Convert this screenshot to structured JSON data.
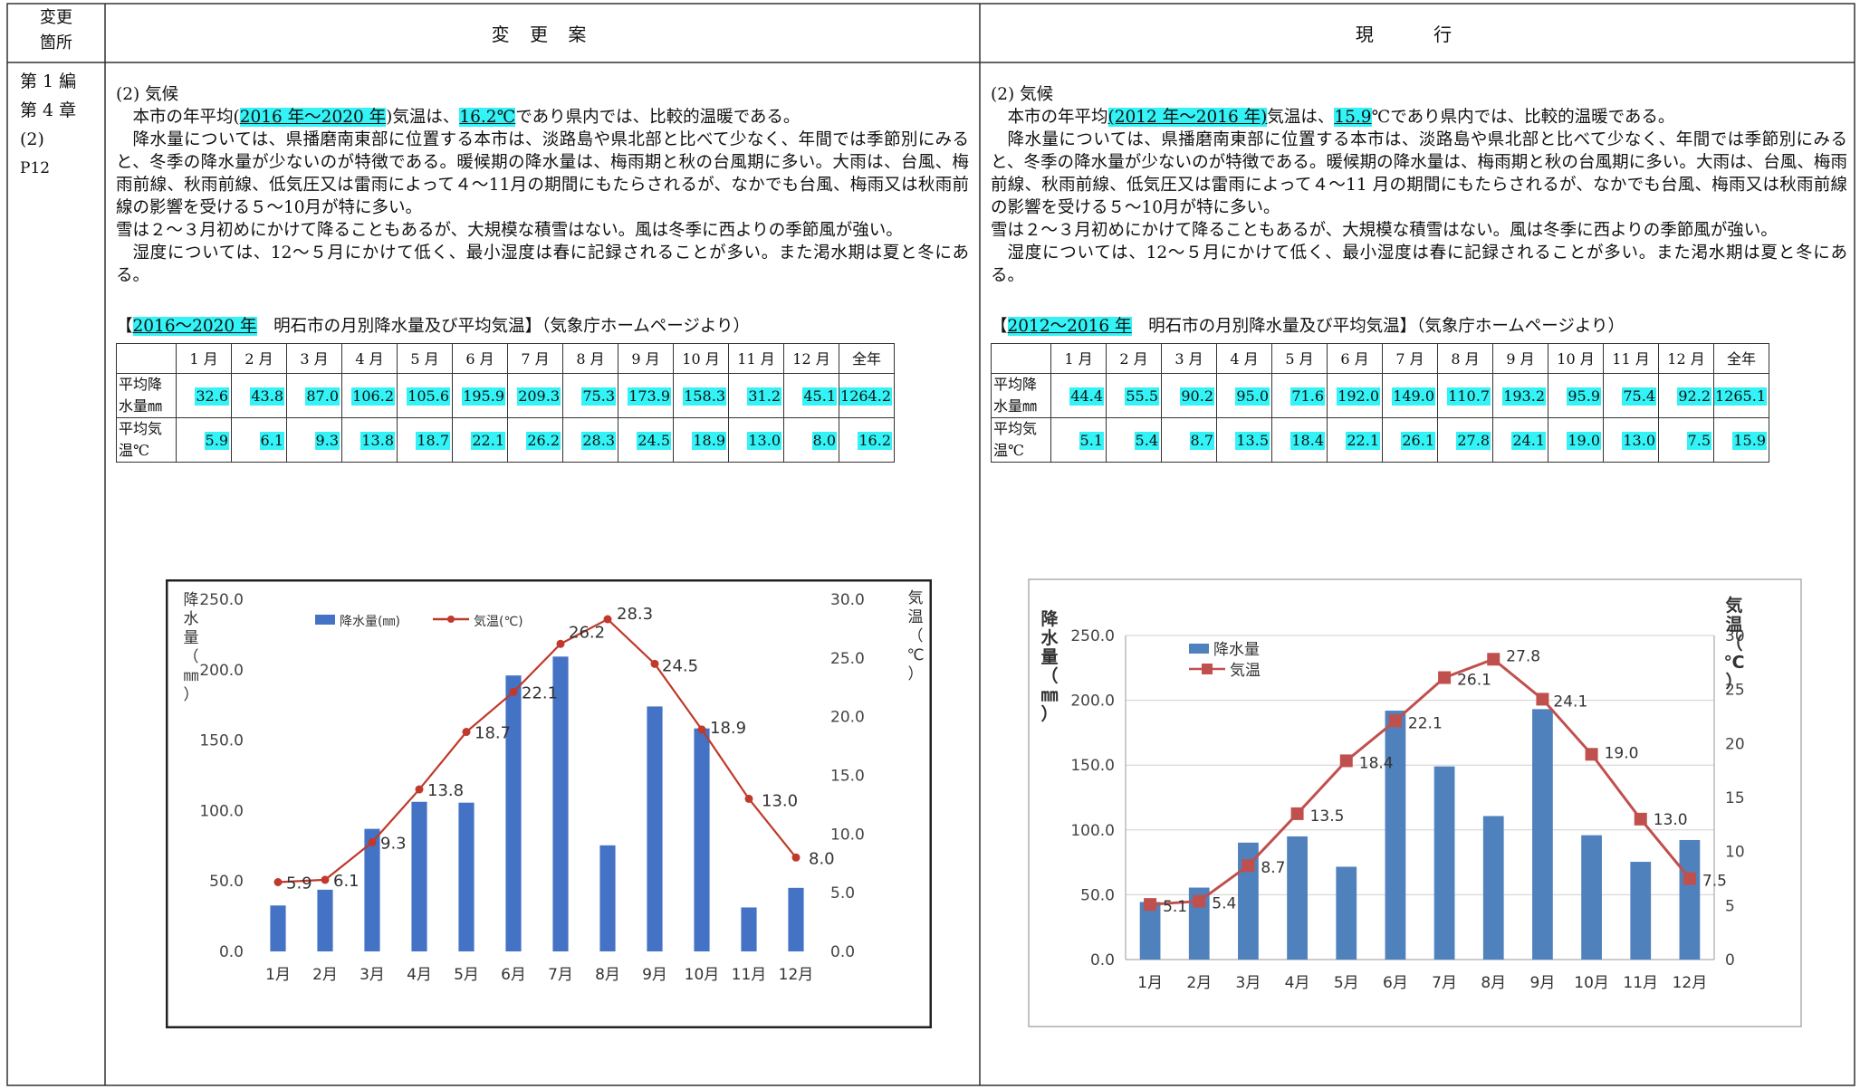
{
  "header": {
    "col_location": [
      "変更",
      "箇所"
    ],
    "col_proposed": "変 更 案",
    "col_current": "現 行"
  },
  "location": [
    "第 1 編",
    "第 4 章",
    "(2)",
    "P12"
  ],
  "proposed": {
    "heading": "(2) 気候",
    "p1_pre": "本市の年平均(",
    "p1_hl1": "2016 年～2020 年",
    "p1_mid": ")気温は、",
    "p1_hl2": "16.2℃",
    "p1_post": "であり県内では、比較的温暖である。",
    "p2": "降水量については、県播磨南東部に位置する本市は、淡路島や県北部と比べて少なく、年間では季節別にみると、冬季の降水量が少ないのが特徴である。暖候期の降水量は、梅雨期と秋の台風期に多い。大雨は、台風、梅雨前線、秋雨前線、低気圧又は雷雨によって４～11月の期間にもたらされるが、なかでも台風、梅雨又は秋雨前線の影響を受ける５～10月が特に多い。",
    "p3": "雪は２～３月初めにかけて降ることもあるが、大規模な積雪はない。風は冬季に西よりの季節風が強い。",
    "p4": "湿度については、12～５月にかけて低く、最小湿度は春に記録されることが多い。また渇水期は夏と冬にある。",
    "caption_open": "【",
    "caption_hl": "2016～2020 年",
    "caption_rest": "　明石市の月別降水量及び平均気温】（気象庁ホームページより）",
    "table": {
      "months": [
        "1 月",
        "2 月",
        "3 月",
        "4 月",
        "5 月",
        "6 月",
        "7 月",
        "8 月",
        "9 月",
        "10 月",
        "11 月",
        "12 月",
        "全年"
      ],
      "row1_label": "平均降水量㎜",
      "row1": [
        "32.6",
        "43.8",
        "87.0",
        "106.2",
        "105.6",
        "195.9",
        "209.3",
        "75.3",
        "173.9",
        "158.3",
        "31.2",
        "45.1",
        "1264.2"
      ],
      "row2_label": "平均気温℃",
      "row2": [
        "5.9",
        "6.1",
        "9.3",
        "13.8",
        "18.7",
        "22.1",
        "26.2",
        "28.3",
        "24.5",
        "18.9",
        "13.0",
        "8.0",
        "16.2"
      ]
    }
  },
  "current": {
    "heading": "(2) 気候",
    "p1_pre": "本市の年平均",
    "p1_hl1": "(2012 年～2016 年)",
    "p1_mid": "気温は、",
    "p1_hl2": "15.9",
    "p1_post": "℃であり県内では、比較的温暖である。",
    "p2": "降水量については、県播磨南東部に位置する本市は、淡路島や県北部と比べて少なく、年間では季節別にみると、冬季の降水量が少ないのが特徴である。暖候期の降水量は、梅雨期と秋の台風期に多い。大雨は、台風、梅雨前線、秋雨前線、低気圧又は雷雨によって４～11 月の期間にもたらされるが、なかでも台風、梅雨又は秋雨前線の影響を受ける５～10月が特に多い。",
    "p3": "雪は２～３月初めにかけて降ることもあるが、大規模な積雪はない。風は冬季に西よりの季節風が強い。",
    "p4": "湿度については、12～５月にかけて低く、最小湿度は春に記録されることが多い。また渇水期は夏と冬にある。",
    "caption_open": "【",
    "caption_hl": "2012～2016 年",
    "caption_rest": "　明石市の月別降水量及び平均気温】（気象庁ホームページより）",
    "table": {
      "months": [
        "1 月",
        "2 月",
        "3 月",
        "4 月",
        "5 月",
        "6 月",
        "7 月",
        "8 月",
        "9 月",
        "10 月",
        "11 月",
        "12 月",
        "全年"
      ],
      "row1_label": "平均降水量㎜",
      "row1": [
        "44.4",
        "55.5",
        "90.2",
        "95.0",
        "71.6",
        "192.0",
        "149.0",
        "110.7",
        "193.2",
        "95.9",
        "75.4",
        "92.2",
        "1265.1"
      ],
      "row2_label": "平均気温℃",
      "row2": [
        "5.1",
        "5.4",
        "8.7",
        "13.5",
        "18.4",
        "22.1",
        "26.1",
        "27.8",
        "24.1",
        "19.0",
        "13.0",
        "7.5",
        "15.9"
      ]
    }
  },
  "chart_data": [
    {
      "type": "bar",
      "title": "",
      "ylabel": "降水量（㎜）",
      "y2label": "気温（℃）",
      "categories": [
        "1月",
        "2月",
        "3月",
        "4月",
        "5月",
        "6月",
        "7月",
        "8月",
        "9月",
        "10月",
        "11月",
        "12月"
      ],
      "ylim": [
        0,
        250
      ],
      "y2lim": [
        0,
        30
      ],
      "yticks": [
        "250.0",
        "200.0",
        "150.0",
        "100.0",
        "50.0",
        "0.0"
      ],
      "y2ticks": [
        "30.0",
        "25.0",
        "20.0",
        "15.0",
        "10.0",
        "5.0",
        "0.0"
      ],
      "legend_position": "top-left",
      "grid": false,
      "series": [
        {
          "name": "降水量(㎜)",
          "type": "bar",
          "axis": "left",
          "color": "#4472c4",
          "values": [
            32.6,
            43.8,
            87.0,
            106.2,
            105.6,
            195.9,
            209.3,
            75.3,
            173.9,
            158.3,
            31.2,
            45.1
          ]
        },
        {
          "name": "気温(℃)",
          "type": "line",
          "axis": "right",
          "color": "#c0392b",
          "values": [
            5.9,
            6.1,
            9.3,
            13.8,
            18.7,
            22.1,
            26.2,
            28.3,
            24.5,
            18.9,
            13.0,
            8.0
          ],
          "labels": [
            "5.9",
            "6.1",
            "9.3",
            "13.8",
            "18.7",
            "22.1",
            "26.2",
            "28.3",
            "24.5",
            "18.9",
            "13.0",
            "8.0"
          ]
        }
      ]
    },
    {
      "type": "bar",
      "title": "",
      "ylabel": "降水量（㎜）",
      "y2label": "気温（℃）",
      "categories": [
        "1月",
        "2月",
        "3月",
        "4月",
        "5月",
        "6月",
        "7月",
        "8月",
        "9月",
        "10月",
        "11月",
        "12月"
      ],
      "ylim": [
        0,
        250
      ],
      "y2lim": [
        0,
        30
      ],
      "yticks": [
        "250.0",
        "200.0",
        "150.0",
        "100.0",
        "50.0",
        "0.0"
      ],
      "y2ticks": [
        "30",
        "25",
        "20",
        "15",
        "10",
        "5",
        "0"
      ],
      "legend_position": "top-left",
      "grid": true,
      "series": [
        {
          "name": "降水量",
          "type": "bar",
          "axis": "left",
          "color": "#4f81bd",
          "values": [
            44.4,
            55.5,
            90.2,
            95.0,
            71.6,
            192.0,
            149.0,
            110.7,
            193.2,
            95.9,
            75.4,
            92.2
          ]
        },
        {
          "name": "気温",
          "type": "line",
          "axis": "right",
          "color": "#c0504d",
          "values": [
            5.1,
            5.4,
            8.7,
            13.5,
            18.4,
            22.1,
            26.1,
            27.8,
            24.1,
            19.0,
            13.0,
            7.5
          ],
          "labels": [
            "5.1",
            "5.4",
            "8.7",
            "13.5",
            "18.4",
            "22.1",
            "26.1",
            "27.8",
            "24.1",
            "19.0",
            "13.0",
            "7.5"
          ]
        }
      ]
    }
  ]
}
